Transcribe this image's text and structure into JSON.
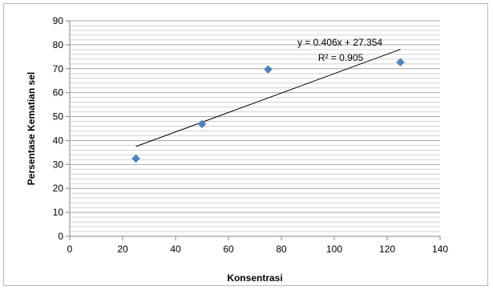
{
  "chart_data": {
    "type": "scatter",
    "title": "",
    "xlabel": "Konsentrasi",
    "ylabel": "Persentase Kematian sel",
    "xlim": [
      0,
      140
    ],
    "ylim": [
      0,
      90
    ],
    "xticks": [
      "0",
      "20",
      "40",
      "60",
      "80",
      "100",
      "120",
      "140"
    ],
    "yticks": [
      "0",
      "10",
      "20",
      "30",
      "40",
      "50",
      "60",
      "70",
      "80",
      "90"
    ],
    "grid": true,
    "legend": "none",
    "marker": "diamond",
    "marker_color": "#4f81bd",
    "series": [
      {
        "x": [
          25,
          50,
          75,
          125
        ],
        "y": [
          32.5,
          46.9,
          69.7,
          72.7
        ]
      }
    ],
    "trendline": {
      "slope": 0.406,
      "intercept": 27.354,
      "x_range": [
        25,
        125
      ],
      "equation": "y = 0.406x + 27.354",
      "r_squared": "R² = 0.905"
    }
  }
}
